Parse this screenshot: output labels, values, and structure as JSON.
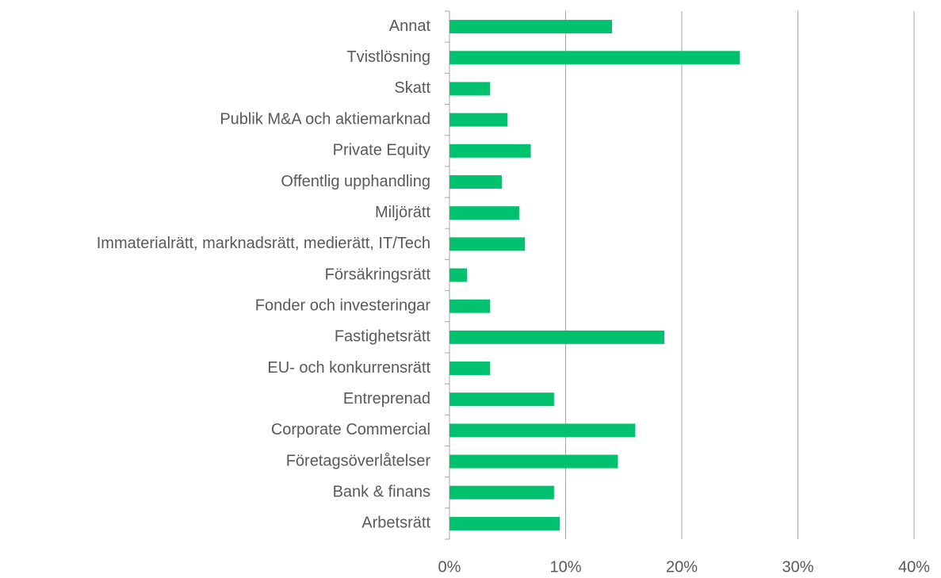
{
  "chart_data": {
    "type": "barh",
    "categories": [
      "Annat",
      "Tvistlösning",
      "Skatt",
      "Publik M&A och aktiemarknad",
      "Private Equity",
      "Offentlig upphandling",
      "Miljörätt",
      "Immaterialrätt, marknadsrätt, medierätt, IT/Tech",
      "Försäkringsrätt",
      "Fonder och investeringar",
      "Fastighetsrätt",
      "EU- och konkurrensrätt",
      "Entreprenad",
      "Corporate Commercial",
      "Företagsöverlåtelser",
      "Bank & finans",
      "Arbetsrätt"
    ],
    "values": [
      14,
      25,
      3.5,
      5,
      7,
      4.5,
      6,
      6.5,
      1.5,
      3.5,
      18.5,
      3.5,
      9,
      16,
      14.5,
      9,
      9.5
    ],
    "color": "#00c16e",
    "xlim": [
      0,
      40
    ],
    "xticks": [
      {
        "value": 0,
        "label": "0%"
      },
      {
        "value": 10,
        "label": "10%"
      },
      {
        "value": 20,
        "label": "20%"
      },
      {
        "value": 30,
        "label": "30%"
      },
      {
        "value": 40,
        "label": "40%"
      }
    ],
    "grid": true
  }
}
